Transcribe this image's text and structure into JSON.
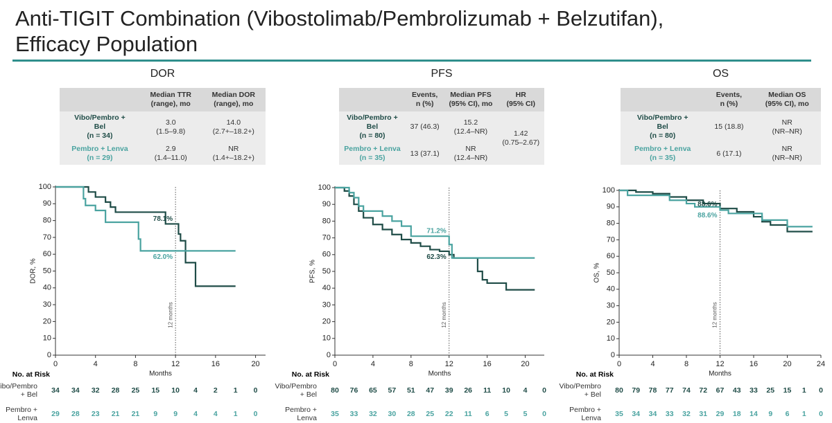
{
  "header": {
    "title_lines": [
      "Anti-TIGIT Combination (Vibostolimab/Pembrolizumab + Belzutifan),",
      "Efficacy Population"
    ]
  },
  "tables": [
    {
      "header": [
        [
          "Median TTR",
          "(range), mo"
        ],
        [
          "Median DOR",
          "(range), mo"
        ]
      ],
      "rows": [
        [
          [
            "Vibo/Pembro +",
            "Bel",
            "(n = 34)"
          ],
          [
            "3.0",
            "(1.5–9.8)"
          ],
          [
            "14.0",
            "(2.7+–18.2+)"
          ]
        ],
        [
          [
            "Pembro + Lenva",
            "(n = 29)"
          ],
          [
            "2.9",
            "(1.4–11.0)"
          ],
          [
            "NR",
            "(1.4+–18.2+)"
          ]
        ]
      ]
    },
    {
      "header": [
        [
          "Events,",
          "n (%)"
        ],
        [
          "Median PFS",
          "(95% CI), mo"
        ],
        [
          "HR",
          "(95% CI)"
        ]
      ],
      "rows": [
        [
          [
            "Vibo/Pembro +",
            "Bel",
            "(n = 80)"
          ],
          [
            "37 (46.3)"
          ],
          [
            "15.2",
            "(12.4–NR)"
          ],
          [
            "1.42",
            "(0.75–2.67)"
          ]
        ],
        [
          [
            "Pembro + Lenva",
            "(n = 35)"
          ],
          [
            "13 (37.1)"
          ],
          [
            "NR",
            "(12.4–NR)"
          ]
        ]
      ]
    },
    {
      "header": [
        [
          "Events,",
          "n (%)"
        ],
        [
          "Median OS",
          "(95% CI), mo"
        ]
      ],
      "rows": [
        [
          [
            "Vibo/Pembro +",
            "Bel",
            "(n = 80)"
          ],
          [
            "15 (18.8)"
          ],
          [
            "NR",
            "(NR–NR)"
          ]
        ],
        [
          [
            "Pembro + Lenva",
            "(n = 35)"
          ],
          [
            "6 (17.1)"
          ],
          [
            "NR",
            "(NR–NR)"
          ]
        ]
      ]
    }
  ],
  "chart_data": [
    {
      "type": "line",
      "step": true,
      "title": "DOR",
      "xlabel": "Months",
      "ylabel": "DOR, %",
      "xlim": [
        0,
        21
      ],
      "xticks": [
        0,
        4,
        8,
        12,
        16,
        20
      ],
      "ylim": [
        0,
        100
      ],
      "yticks": [
        0,
        10,
        20,
        30,
        40,
        50,
        60,
        70,
        80,
        90,
        100
      ],
      "ref_line": {
        "x": 12,
        "label": "12 months"
      },
      "annotations": [
        {
          "text": "78.1%",
          "value": 78.1,
          "series": 0
        },
        {
          "text": "62.0%",
          "value": 62.0,
          "series": 1
        }
      ],
      "risk_title": "No. at Risk",
      "risk_x": [
        0,
        2,
        4,
        6,
        8,
        10,
        12,
        14,
        16,
        18,
        20
      ],
      "series": [
        {
          "name": "Vibo/Pembro + Bel",
          "color": "#1f4c47",
          "x": [
            0,
            3,
            3.3,
            4,
            5,
            5.5,
            6,
            8,
            10,
            11,
            12,
            12.3,
            12.5,
            13,
            14,
            18
          ],
          "values": [
            100,
            100,
            97,
            94,
            91,
            88,
            85,
            85,
            85,
            78,
            78,
            72,
            68,
            55,
            41,
            41
          ],
          "at_risk": [
            34,
            34,
            32,
            28,
            25,
            15,
            10,
            4,
            2,
            1,
            0
          ]
        },
        {
          "name": "Pembro + Lenva",
          "color": "#4aa3a0",
          "x": [
            0,
            2.8,
            3,
            4,
            5,
            8,
            8.3,
            8.5,
            18
          ],
          "values": [
            100,
            93,
            89,
            86,
            79,
            79,
            69,
            62,
            62
          ],
          "at_risk": [
            29,
            28,
            23,
            21,
            21,
            9,
            9,
            4,
            4,
            1,
            0
          ]
        }
      ]
    },
    {
      "type": "line",
      "step": true,
      "title": "PFS",
      "xlabel": "Months",
      "ylabel": "PFS, %",
      "xlim": [
        0,
        22
      ],
      "xticks": [
        0,
        4,
        8,
        12,
        16,
        20
      ],
      "ylim": [
        0,
        100
      ],
      "yticks": [
        0,
        10,
        20,
        30,
        40,
        50,
        60,
        70,
        80,
        90,
        100
      ],
      "ref_line": {
        "x": 12,
        "label": "12 months"
      },
      "annotations": [
        {
          "text": "71.2%",
          "value": 71.2,
          "series": 1
        },
        {
          "text": "62.3%",
          "value": 62.3,
          "series": 0
        }
      ],
      "risk_title": "No. at Risk",
      "risk_x": [
        0,
        2,
        4,
        6,
        8,
        10,
        12,
        14,
        16,
        18,
        20,
        22
      ],
      "series": [
        {
          "name": "Vibo/Pembro + Bel",
          "color": "#1f4c47",
          "x": [
            0,
            1,
            1.5,
            2,
            2.5,
            3,
            4,
            5,
            6,
            7,
            8,
            9,
            10,
            11,
            12,
            12.5,
            14,
            15,
            15.5,
            16,
            18,
            21
          ],
          "values": [
            100,
            98,
            95,
            90,
            86,
            82,
            78,
            75,
            72,
            69,
            67,
            65,
            63,
            62,
            60,
            58,
            58,
            50,
            45,
            43,
            39,
            39
          ],
          "at_risk": [
            80,
            76,
            65,
            57,
            51,
            47,
            39,
            26,
            11,
            10,
            4,
            0
          ]
        },
        {
          "name": "Pembro + Lenva",
          "color": "#4aa3a0",
          "x": [
            0,
            1.5,
            2,
            2.5,
            3,
            5,
            6,
            7,
            8,
            11,
            12,
            12.3,
            21
          ],
          "values": [
            100,
            97,
            94,
            89,
            86,
            83,
            80,
            77,
            71,
            71,
            66,
            58,
            58
          ],
          "at_risk": [
            35,
            33,
            32,
            30,
            28,
            25,
            22,
            11,
            6,
            5,
            5,
            0
          ]
        }
      ]
    },
    {
      "type": "line",
      "step": true,
      "title": "OS",
      "xlabel": "Months",
      "ylabel": "OS, %",
      "xlim": [
        0,
        24
      ],
      "xticks": [
        0,
        4,
        8,
        12,
        16,
        20,
        24
      ],
      "ylim": [
        0,
        100
      ],
      "yticks": [
        0,
        10,
        20,
        30,
        40,
        50,
        60,
        70,
        80,
        90,
        100
      ],
      "ref_line": {
        "x": 12,
        "label": "12 months"
      },
      "annotations": [
        {
          "text": "88.6%",
          "value": 88.6,
          "series": 0
        },
        {
          "text": "88.6%",
          "value": 88.6,
          "series": 1
        }
      ],
      "risk_title": "No. at Risk",
      "risk_x": [
        0,
        2,
        4,
        6,
        8,
        10,
        12,
        14,
        16,
        18,
        20,
        22,
        24
      ],
      "series": [
        {
          "name": "Vibo/Pembro + Bel",
          "color": "#1f4c47",
          "x": [
            0,
            2,
            4,
            6,
            8,
            10,
            12,
            14,
            16,
            17,
            18,
            20,
            23
          ],
          "values": [
            100,
            99,
            98,
            96,
            94,
            92,
            89,
            87,
            84,
            81,
            79,
            75,
            75
          ],
          "at_risk": [
            80,
            79,
            78,
            77,
            74,
            72,
            67,
            43,
            33,
            25,
            15,
            1,
            0
          ]
        },
        {
          "name": "Pembro + Lenva",
          "color": "#4aa3a0",
          "x": [
            0,
            1,
            3,
            6,
            8,
            9,
            12,
            13,
            16,
            17,
            20,
            23
          ],
          "values": [
            100,
            97,
            97,
            94,
            92,
            90,
            88,
            86,
            86,
            82,
            78,
            78
          ],
          "at_risk": [
            35,
            34,
            34,
            33,
            32,
            31,
            29,
            18,
            14,
            9,
            6,
            1,
            0
          ]
        }
      ]
    }
  ]
}
